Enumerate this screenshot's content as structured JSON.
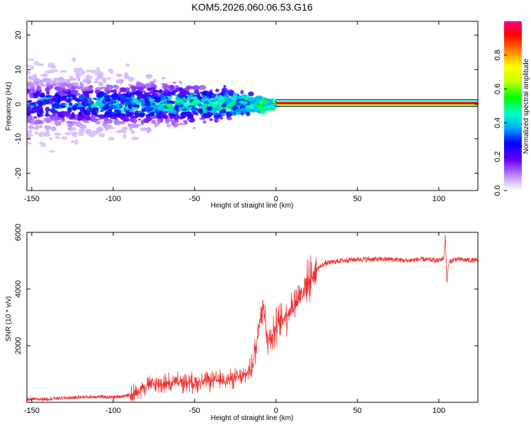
{
  "title": "KOM5.2026.060.06.53.G16",
  "chart_data": [
    {
      "type": "heatmap",
      "description_key": "spectrogram",
      "xlabel": "Height of straight line (km)",
      "ylabel": "Frequency (Hz)",
      "xlim": [
        -153,
        124
      ],
      "ylim": [
        -25,
        24
      ],
      "xticks": [
        -150,
        -100,
        -50,
        0,
        50,
        100
      ],
      "yticks": [
        -20,
        -10,
        0,
        10,
        20
      ],
      "colorbar": {
        "label": "Normalized spectral amplitude",
        "range": [
          0.0,
          1.0
        ],
        "ticks": [
          0.0,
          0.2,
          0.4,
          0.6,
          0.8
        ]
      },
      "ridge": {
        "frequency_hz": 0.3,
        "start_km": 0,
        "end_km": 124,
        "amplitude": 0.92
      },
      "scatter_region": {
        "from_km": -153,
        "to_km": 0,
        "amplitude_range": [
          0.05,
          0.55
        ]
      }
    },
    {
      "type": "line",
      "xlabel": "Height of straight line (km)",
      "ylabel": "SNR (10 * v/v)",
      "xlim": [
        -153,
        124
      ],
      "ylim": [
        0,
        6000
      ],
      "xticks": [
        -150,
        -100,
        -50,
        0,
        50,
        100
      ],
      "yticks": [
        2000,
        4000,
        6000
      ],
      "series": [
        {
          "name": "SNR",
          "color": "#ee3333",
          "x": [
            -153,
            -140,
            -130,
            -120,
            -110,
            -100,
            -90,
            -85,
            -80,
            -70,
            -60,
            -50,
            -40,
            -30,
            -20,
            -15,
            -12,
            -10,
            -8,
            -5,
            0,
            5,
            10,
            15,
            20,
            25,
            30,
            40,
            50,
            60,
            70,
            80,
            90,
            100,
            103,
            104,
            105,
            106,
            108,
            110,
            124
          ],
          "y": [
            100,
            120,
            150,
            180,
            200,
            180,
            250,
            400,
            600,
            650,
            700,
            700,
            750,
            800,
            900,
            1200,
            2000,
            3000,
            3500,
            2200,
            2600,
            3000,
            3400,
            3800,
            4300,
            4700,
            4900,
            5000,
            5050,
            5050,
            5050,
            5000,
            5050,
            5000,
            5100,
            5900,
            4200,
            4900,
            5000,
            5050,
            5000
          ]
        }
      ]
    }
  ],
  "colors": {
    "line": "#ee3333",
    "ridge": "#ff0000"
  }
}
